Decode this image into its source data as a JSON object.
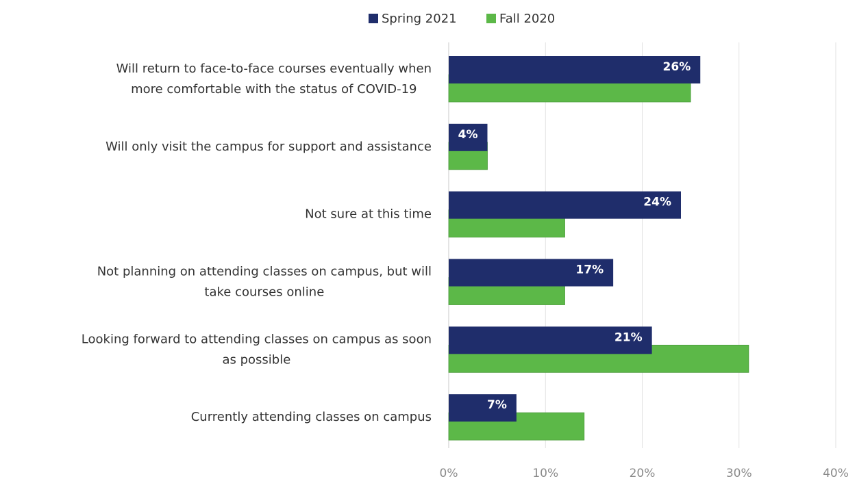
{
  "chart_data": {
    "type": "bar",
    "orientation": "horizontal",
    "categories": [
      [
        "Will return to face-to-face courses eventually when",
        "more comfortable with the status of COVID-19"
      ],
      [
        "Will only visit the campus for support and assistance"
      ],
      [
        "Not sure at this time"
      ],
      [
        "Not planning on attending classes on campus, but will",
        "take courses online"
      ],
      [
        "Looking forward to attending classes on campus as soon",
        "as possible"
      ],
      [
        "Currently attending classes on campus"
      ]
    ],
    "series": [
      {
        "name": "Spring 2021",
        "color": "#1f2d6b",
        "values": [
          26,
          4,
          24,
          17,
          21,
          7
        ],
        "labels": [
          "26%",
          "4%",
          "24%",
          "17%",
          "21%",
          "7%"
        ]
      },
      {
        "name": "Fall 2020",
        "color": "#5cb848",
        "values": [
          25,
          4,
          12,
          12,
          31,
          14
        ]
      }
    ],
    "xlim": [
      0,
      40
    ],
    "xticks": [
      "0%",
      "10%",
      "20%",
      "30%",
      "40%"
    ],
    "grid": true,
    "legend": "top"
  }
}
